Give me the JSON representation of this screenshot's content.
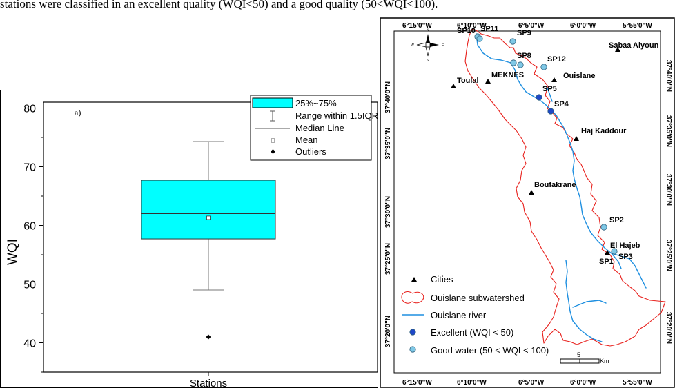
{
  "caption": {
    "text": "stations were classified in an excellent quality (WQI<50) and a good quality (50<WQI<100)."
  },
  "chart_data": {
    "type": "box",
    "panel_label": "a)",
    "ylabel": "WQI",
    "xlabel": "Stations",
    "ylim": [
      35,
      81
    ],
    "yticks": [
      40,
      50,
      60,
      70,
      80
    ],
    "box": {
      "q1": 57.7,
      "median": 62.0,
      "q3": 67.7,
      "mean": 61.3,
      "whisker_low": 49.0,
      "whisker_high": 74.3,
      "outliers": [
        41.0
      ]
    },
    "box_color": "#00ffff",
    "legend": {
      "position": "top-right",
      "entries": [
        "25%~75%",
        "Range within 1.5IQR",
        "Median Line",
        "Mean",
        "Outliers"
      ]
    }
  },
  "map": {
    "top_ticks": [
      "6°15'0\"W",
      "6°10'0\"W",
      "6°5'0\"W",
      "6°0'0\"W",
      "5°55'0\"W"
    ],
    "bottom_ticks": [
      "6°15'0\"W",
      "6°10'0\"W",
      "6°5'0\"W",
      "6°0'0\"W",
      "5°55'0\"W"
    ],
    "left_ticks": [
      "37°40'0\"N",
      "37°35'0\"N",
      "37°30'0\"N",
      "37°25'0\"N",
      "37°20'0\"N"
    ],
    "right_ticks": [
      "37°40'0\"N",
      "37°35'0\"N",
      "37°30'0\"N",
      "37°25'0\"N",
      "37°20'0\"N"
    ],
    "compass_letters": [
      "N",
      "W",
      "E",
      "S"
    ],
    "cities": [
      "Sabaa Aiyoun",
      "Ouislane",
      "MEKNES",
      "Toulal",
      "Haj Kaddour",
      "Boufakrane",
      "El Hajeb"
    ],
    "stations": [
      {
        "label": "SP10",
        "quality": "good"
      },
      {
        "label": "SP11",
        "quality": "good"
      },
      {
        "label": "SP9",
        "quality": "good"
      },
      {
        "label": "SP8",
        "quality": "good"
      },
      {
        "label": "SP12",
        "quality": "good"
      },
      {
        "label": "SP5",
        "quality": "excellent"
      },
      {
        "label": "SP4",
        "quality": "excellent"
      },
      {
        "label": "SP2",
        "quality": "good"
      },
      {
        "label": "SP1",
        "quality": "good"
      },
      {
        "label": "SP3",
        "quality": "good"
      }
    ],
    "legend": {
      "cities": "Cities",
      "subwatershed": "Ouislane subwatershed",
      "river": "Ouislane river",
      "excellent": "Excellent (WQI < 50)",
      "good": "Good water (50 < WQI < 100)"
    },
    "scale_bar": {
      "value": "5",
      "unit": "Km"
    },
    "colors": {
      "boundary": "#e8201c",
      "river": "#1e8fe0",
      "excellent": "#1f47c8",
      "good": "#7fc8e6"
    }
  }
}
